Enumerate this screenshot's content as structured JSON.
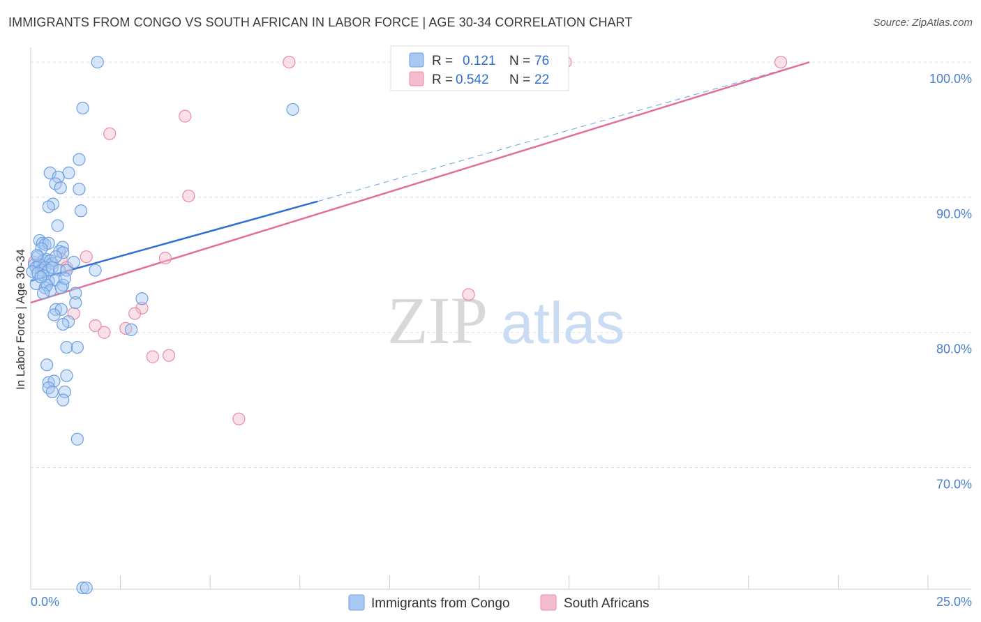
{
  "title": "IMMIGRANTS FROM CONGO VS SOUTH AFRICAN IN LABOR FORCE | AGE 30-34 CORRELATION CHART",
  "source": "Source: ZipAtlas.com",
  "watermark": {
    "zip": "ZIP",
    "atlas": "atlas"
  },
  "colors": {
    "blue_fill": "#a9c8f2",
    "blue_stroke": "#6a9fe0",
    "blue_line": "#2f6fd0",
    "pink_fill": "#f5bccd",
    "pink_stroke": "#e98aa8",
    "pink_line": "#e0709a",
    "grid": "#dddddd",
    "tick_text": "#4a7fcf"
  },
  "chart_data": {
    "type": "scatter",
    "xlabel": "",
    "ylabel": "In Labor Force | Age 30-34",
    "xlim": [
      0,
      25
    ],
    "ylim": [
      61,
      101.5
    ],
    "x_tick_labels": [
      {
        "value": 0,
        "label": "0.0%"
      },
      {
        "value": 25,
        "label": "25.0%"
      }
    ],
    "y_ticks": [
      {
        "value": 70,
        "label": "70.0%"
      },
      {
        "value": 80,
        "label": "80.0%"
      },
      {
        "value": 90,
        "label": "90.0%"
      },
      {
        "value": 100,
        "label": "100.0%"
      }
    ],
    "legend": [
      {
        "r_label": "R =",
        "r_value": "0.121",
        "n_label": "N =",
        "n_value": "76"
      },
      {
        "r_label": "R =",
        "r_value": "0.542",
        "n_label": "N =",
        "n_value": "22"
      }
    ],
    "series": [
      {
        "name": "Immigrants from Congo",
        "color": "blue",
        "trend": {
          "x0": 0.0,
          "y0": 83.8,
          "x1": 8.0,
          "y1": 89.7,
          "dashed_to_x": 21.7,
          "dashed_to_y": 100.0
        },
        "points": [
          [
            1.86,
            100.0
          ],
          [
            1.45,
            96.6
          ],
          [
            7.3,
            96.5
          ],
          [
            1.35,
            92.8
          ],
          [
            1.06,
            91.8
          ],
          [
            0.54,
            91.8
          ],
          [
            0.77,
            91.5
          ],
          [
            0.69,
            91.0
          ],
          [
            1.35,
            90.6
          ],
          [
            0.83,
            90.7
          ],
          [
            0.62,
            89.5
          ],
          [
            0.5,
            89.3
          ],
          [
            1.4,
            89.0
          ],
          [
            0.75,
            87.9
          ],
          [
            0.25,
            86.8
          ],
          [
            0.33,
            86.6
          ],
          [
            0.4,
            86.5
          ],
          [
            0.5,
            86.6
          ],
          [
            0.89,
            86.3
          ],
          [
            0.3,
            86.2
          ],
          [
            0.8,
            86.0
          ],
          [
            0.9,
            85.9
          ],
          [
            0.2,
            85.6
          ],
          [
            0.35,
            85.3
          ],
          [
            0.45,
            85.4
          ],
          [
            0.55,
            85.3
          ],
          [
            0.6,
            85.1
          ],
          [
            0.1,
            85.0
          ],
          [
            0.15,
            84.8
          ],
          [
            0.25,
            85.0
          ],
          [
            0.3,
            84.6
          ],
          [
            0.4,
            84.8
          ],
          [
            0.5,
            84.6
          ],
          [
            0.6,
            84.8
          ],
          [
            0.8,
            84.6
          ],
          [
            1.0,
            84.6
          ],
          [
            1.8,
            84.6
          ],
          [
            0.05,
            84.5
          ],
          [
            0.2,
            84.4
          ],
          [
            0.35,
            84.2
          ],
          [
            0.5,
            83.8
          ],
          [
            0.7,
            83.9
          ],
          [
            0.9,
            83.5
          ],
          [
            0.15,
            83.6
          ],
          [
            0.4,
            83.3
          ],
          [
            0.45,
            83.5
          ],
          [
            0.55,
            83.1
          ],
          [
            0.85,
            83.3
          ],
          [
            0.35,
            82.9
          ],
          [
            1.25,
            82.9
          ],
          [
            3.1,
            82.5
          ],
          [
            1.25,
            82.2
          ],
          [
            0.7,
            81.7
          ],
          [
            0.85,
            81.7
          ],
          [
            0.65,
            81.3
          ],
          [
            1.05,
            80.8
          ],
          [
            0.9,
            80.6
          ],
          [
            2.8,
            80.2
          ],
          [
            1.0,
            78.9
          ],
          [
            1.3,
            78.9
          ],
          [
            0.45,
            77.6
          ],
          [
            1.0,
            76.8
          ],
          [
            0.5,
            76.3
          ],
          [
            0.65,
            76.4
          ],
          [
            0.5,
            75.9
          ],
          [
            0.6,
            75.6
          ],
          [
            0.95,
            75.6
          ],
          [
            0.9,
            75.0
          ],
          [
            1.3,
            72.1
          ],
          [
            1.45,
            61.1
          ],
          [
            1.55,
            61.1
          ],
          [
            0.18,
            85.7
          ],
          [
            0.28,
            84.1
          ],
          [
            1.2,
            85.2
          ],
          [
            0.7,
            85.6
          ],
          [
            0.95,
            84.0
          ]
        ]
      },
      {
        "name": "South Africans",
        "color": "pink",
        "trend": {
          "x0": 0.0,
          "y0": 82.2,
          "x1": 21.7,
          "y1": 100.0
        },
        "points": [
          [
            7.2,
            100.0
          ],
          [
            14.9,
            100.0
          ],
          [
            20.9,
            100.0
          ],
          [
            4.3,
            96.0
          ],
          [
            2.2,
            94.7
          ],
          [
            4.4,
            90.1
          ],
          [
            1.55,
            85.6
          ],
          [
            3.75,
            85.5
          ],
          [
            0.85,
            85.4
          ],
          [
            0.1,
            85.2
          ],
          [
            0.35,
            85.0
          ],
          [
            1.0,
            84.8
          ],
          [
            12.2,
            82.8
          ],
          [
            3.1,
            81.8
          ],
          [
            2.9,
            81.4
          ],
          [
            1.2,
            81.4
          ],
          [
            1.8,
            80.5
          ],
          [
            2.65,
            80.3
          ],
          [
            2.05,
            80.0
          ],
          [
            3.4,
            78.2
          ],
          [
            3.85,
            78.3
          ],
          [
            5.8,
            73.6
          ]
        ]
      }
    ]
  }
}
